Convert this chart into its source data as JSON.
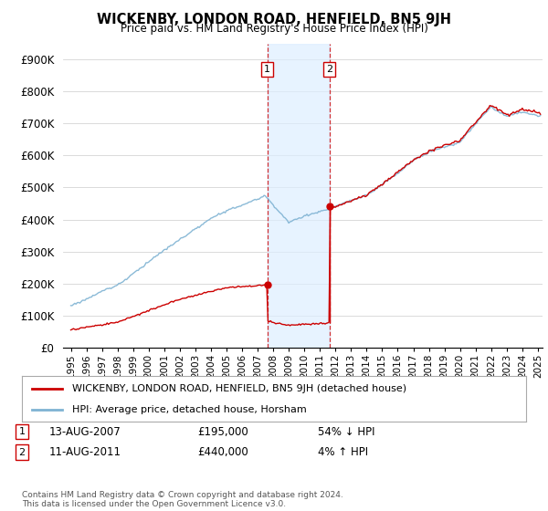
{
  "title": "WICKENBY, LONDON ROAD, HENFIELD, BN5 9JH",
  "subtitle": "Price paid vs. HM Land Registry's House Price Index (HPI)",
  "ylabel_ticks": [
    "£0",
    "£100K",
    "£200K",
    "£300K",
    "£400K",
    "£500K",
    "£600K",
    "£700K",
    "£800K",
    "£900K"
  ],
  "ytick_vals": [
    0,
    100000,
    200000,
    300000,
    400000,
    500000,
    600000,
    700000,
    800000,
    900000
  ],
  "ylim": [
    0,
    950000
  ],
  "xlim_start": 1994.5,
  "xlim_end": 2025.3,
  "sale1_date": 2007.617,
  "sale1_price": 195000,
  "sale2_date": 2011.617,
  "sale2_price": 440000,
  "legend_line1": "WICKENBY, LONDON ROAD, HENFIELD, BN5 9JH (detached house)",
  "legend_line2": "HPI: Average price, detached house, Horsham",
  "sale1_text": "13-AUG-2007",
  "sale1_price_text": "£195,000",
  "sale1_hpi_text": "54% ↓ HPI",
  "sale2_text": "11-AUG-2011",
  "sale2_price_text": "£440,000",
  "sale2_hpi_text": "4% ↑ HPI",
  "footnote": "Contains HM Land Registry data © Crown copyright and database right 2024.\nThis data is licensed under the Open Government Licence v3.0.",
  "hpi_color": "#7fb3d3",
  "price_color": "#cc0000",
  "shade_color": "#ddeeff",
  "background_color": "#ffffff",
  "grid_color": "#cccccc"
}
